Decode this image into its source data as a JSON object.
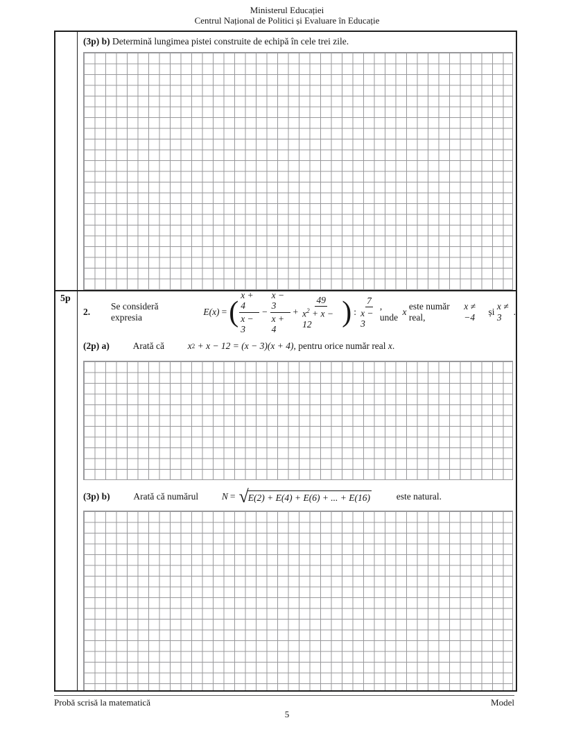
{
  "header": {
    "line1": "Ministerul Educației",
    "line2": "Centrul Național de Politici și Evaluare în Educație"
  },
  "problem1b": {
    "label": "(3p) b)",
    "text": "Determină lungimea pistei construite de echipă în cele trei zile."
  },
  "problem2": {
    "points": "5p",
    "number": "2.",
    "intro_text": "Se consideră expresia",
    "fn": "E(x)",
    "eq": "=",
    "open_paren": "(",
    "close_paren": ")",
    "frac1": {
      "num": "x + 4",
      "den": "x − 3"
    },
    "minus": "−",
    "frac2": {
      "num": "x − 3",
      "den": "x + 4"
    },
    "plus": "+",
    "frac3": {
      "num": "49",
      "den_base": "x",
      "den_sup": "2",
      "den_rest": "+ x − 12"
    },
    "colon": ":",
    "frac4": {
      "num": "7",
      "den": "x − 3"
    },
    "tail1": ", unde",
    "tail_var": "x",
    "tail2": "este număr real,",
    "cond1": "x ≠ −4",
    "conj": "și",
    "cond2": "x ≠ 3",
    "period": ".",
    "part_a": {
      "label": "(2p) a)",
      "lead": "Arată că",
      "math_base": "x",
      "math_sup": "2",
      "math_rest": "+ x − 12 = (x − 3)(x + 4)",
      "tail": ", pentru orice număr real",
      "tail_var": "x",
      "period": "."
    },
    "part_b": {
      "label": "(3p) b)",
      "lead": "Arată că numărul",
      "var_n": "N",
      "eq": "=",
      "sqrt_symbol": "√",
      "radicand": "E(2) + E(4) + E(6) + ... + E(16)",
      "tail": "este natural."
    }
  },
  "footer": {
    "left": "Probă scrisă la matematică",
    "right": "Model",
    "page": "5"
  }
}
